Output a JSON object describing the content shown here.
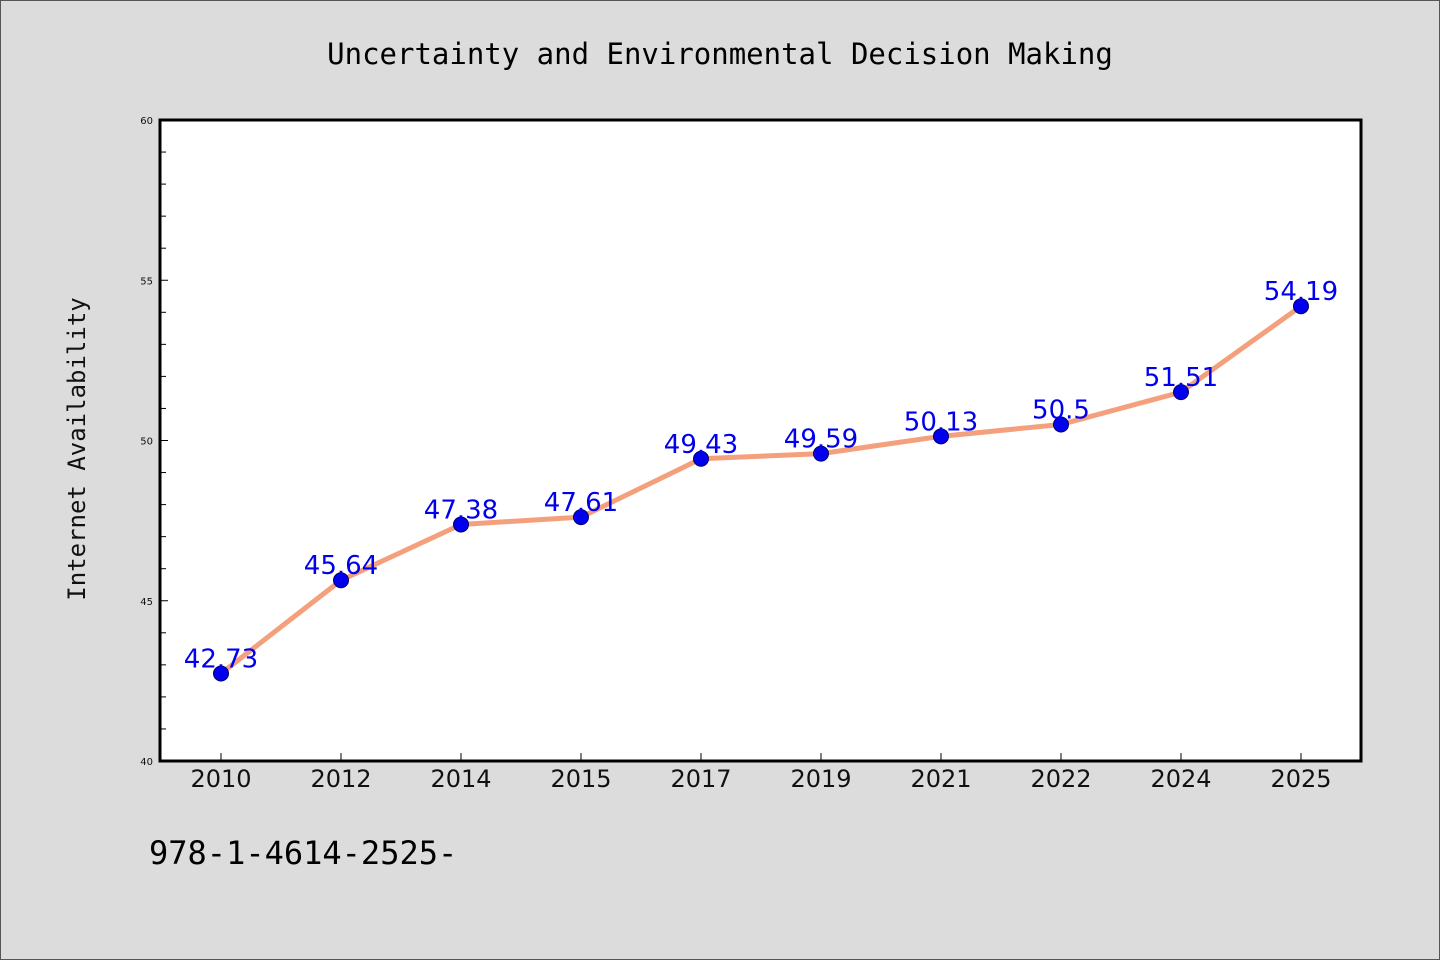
{
  "chart_data": {
    "type": "line",
    "title": "Uncertainty and Environmental Decision Making",
    "xlabel": "",
    "ylabel": "Internet Availability",
    "categories": [
      "2010",
      "2012",
      "2014",
      "2015",
      "2017",
      "2019",
      "2021",
      "2022",
      "2024",
      "2025"
    ],
    "series": [
      {
        "values": [
          42.73,
          45.64,
          47.38,
          47.61,
          49.43,
          49.59,
          50.13,
          50.5,
          51.51,
          54.19
        ],
        "labels": [
          "42.73",
          "45.64",
          "47.38",
          "47.61",
          "49.43",
          "49.59",
          "50.13",
          "50.5",
          "51.51",
          "54.19"
        ]
      }
    ],
    "ylim": [
      40,
      60
    ],
    "yticks": [
      "40",
      "45",
      "50",
      "55",
      "60"
    ],
    "grid": false,
    "legend": "none",
    "colors": {
      "line": "#f4a07c",
      "marker": "#0000ee",
      "label": "#0000ee",
      "background": "#dcdcdc",
      "plot_background": "#ffffff"
    }
  },
  "footnote": "978-1-4614-2525-"
}
